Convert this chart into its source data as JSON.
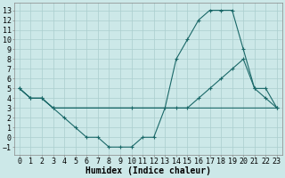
{
  "bg_color": "#cce8e8",
  "line_color": "#1a6868",
  "grid_color": "#aacece",
  "xlabel": "Humidex (Indice chaleur)",
  "xlim": [
    -0.5,
    23.5
  ],
  "ylim": [
    -1.8,
    13.8
  ],
  "xticks": [
    0,
    1,
    2,
    3,
    4,
    5,
    6,
    7,
    8,
    9,
    10,
    11,
    12,
    13,
    14,
    15,
    16,
    17,
    18,
    19,
    20,
    21,
    22,
    23
  ],
  "yticks": [
    -1,
    0,
    1,
    2,
    3,
    4,
    5,
    6,
    7,
    8,
    9,
    10,
    11,
    12,
    13
  ],
  "line1_x": [
    0,
    1,
    2,
    3,
    4,
    5,
    6,
    7,
    8,
    9,
    10,
    11,
    12,
    13,
    14,
    15,
    16,
    17,
    18,
    19,
    20,
    21,
    22,
    23
  ],
  "line1_y": [
    5,
    4,
    4,
    3,
    2,
    1,
    0,
    0,
    -1,
    -1,
    -1,
    0,
    0,
    3,
    8,
    10,
    12,
    13,
    13,
    13,
    9,
    5,
    4,
    3
  ],
  "line2_x": [
    0,
    1,
    2,
    3,
    10,
    14,
    15,
    16,
    17,
    18,
    19,
    20,
    21,
    22,
    23
  ],
  "line2_y": [
    5,
    4,
    4,
    3,
    3,
    3,
    3,
    4,
    5,
    6,
    7,
    8,
    5,
    5,
    3
  ],
  "line3_x": [
    0,
    1,
    2,
    3,
    4,
    5,
    6,
    7,
    8,
    9,
    10,
    11,
    12,
    13,
    14,
    15,
    16,
    17,
    18,
    19,
    20,
    21,
    22,
    23
  ],
  "line3_y": [
    5,
    4,
    4,
    3,
    3,
    3,
    3,
    3,
    3,
    3,
    3,
    3,
    3,
    3,
    3,
    3,
    3,
    3,
    3,
    3,
    3,
    3,
    3,
    3
  ],
  "font_family": "monospace",
  "label_fontsize": 7,
  "tick_fontsize": 6
}
